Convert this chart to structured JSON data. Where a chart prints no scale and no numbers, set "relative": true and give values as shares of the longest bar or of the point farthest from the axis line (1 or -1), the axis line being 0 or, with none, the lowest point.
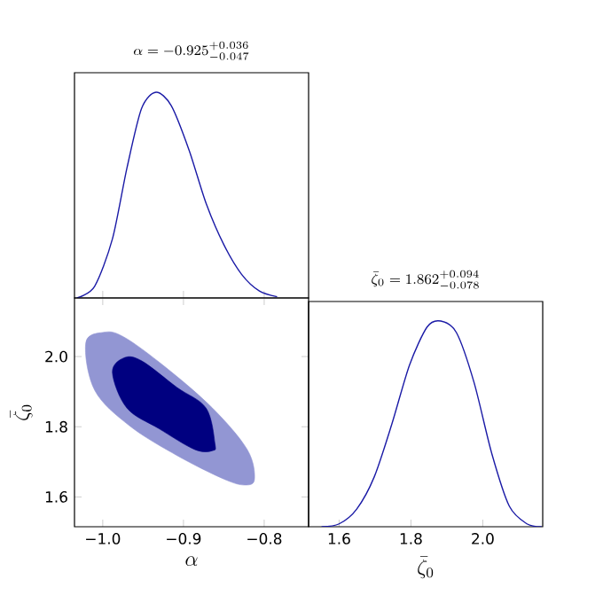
{
  "chart_data": [
    {
      "type": "line",
      "title": "\\alpha = -0.925^{+0.036}_{-0.047}",
      "relative": true,
      "tick_labels": false,
      "xlim": [
        -1.035,
        -0.745
      ],
      "xticks": [
        {
          "value": -1.0,
          "label": null
        },
        {
          "value": -0.9,
          "label": null
        },
        {
          "value": -0.8,
          "label": null
        }
      ],
      "series": [
        {
          "color": "#1a1aa6",
          "x": [
            -1.032,
            -1.01,
            -0.988,
            -0.97,
            -0.952,
            -0.934,
            -0.915,
            -0.893,
            -0.872,
            -0.85,
            -0.828,
            -0.806,
            -0.784
          ],
          "values": [
            0,
            0.057,
            0.287,
            0.632,
            0.92,
            1,
            0.934,
            0.718,
            0.46,
            0.259,
            0.115,
            0.034,
            0.006
          ]
        }
      ]
    },
    {
      "type": "area",
      "xlabel": "\\alpha",
      "ylabel": "\\bar{\\zeta}_0",
      "xlim": [
        -1.035,
        -0.745
      ],
      "xticks": [
        {
          "value": -1.0,
          "label": "−1.0"
        },
        {
          "value": -0.9,
          "label": "−0.9"
        },
        {
          "value": -0.8,
          "label": "−0.8"
        }
      ],
      "ylim": [
        1.515,
        2.167
      ],
      "yticks": [
        {
          "value": 1.6,
          "label": "1.6"
        },
        {
          "value": 1.8,
          "label": "1.8"
        },
        {
          "value": 2.0,
          "label": "2.0"
        }
      ],
      "series": [
        {
          "color": "#9296d3",
          "x": [
            -1.021,
            -0.999,
            -0.974,
            -0.923,
            -0.864,
            -0.821,
            -0.812,
            -0.824,
            -0.85,
            -0.908,
            -0.967,
            -1.01
          ],
          "values": [
            2.039,
            2.069,
            2.056,
            1.971,
            1.853,
            1.735,
            1.651,
            1.634,
            1.651,
            1.718,
            1.803,
            1.904
          ]
        },
        {
          "color": "#000080",
          "x": [
            -0.988,
            -0.974,
            -0.952,
            -0.908,
            -0.872,
            -0.861,
            -0.864,
            -0.886,
            -0.93,
            -0.97
          ],
          "values": [
            1.954,
            1.996,
            1.988,
            1.912,
            1.853,
            1.752,
            1.732,
            1.735,
            1.794,
            1.853
          ]
        }
      ]
    },
    {
      "type": "line",
      "title": "\\bar{\\zeta}_0 = 1.862^{+0.094}_{-0.078}",
      "xlabel": "\\bar{\\zeta}_0",
      "relative": true,
      "tick_labels": "x",
      "xlim": [
        1.515,
        2.167
      ],
      "xticks": [
        {
          "value": 1.6,
          "label": "1.6"
        },
        {
          "value": 1.8,
          "label": "1.8"
        },
        {
          "value": 2.0,
          "label": "2.0"
        }
      ],
      "series": [
        {
          "color": "#1a1aa6",
          "x": [
            1.551,
            1.6,
            1.649,
            1.698,
            1.747,
            1.796,
            1.845,
            1.883,
            1.927,
            1.976,
            2.025,
            2.074,
            2.123,
            2.164
          ],
          "values": [
            0,
            0.014,
            0.086,
            0.243,
            0.5,
            0.786,
            0.971,
            1,
            0.943,
            0.7,
            0.357,
            0.1,
            0.014,
            0
          ]
        }
      ]
    }
  ]
}
